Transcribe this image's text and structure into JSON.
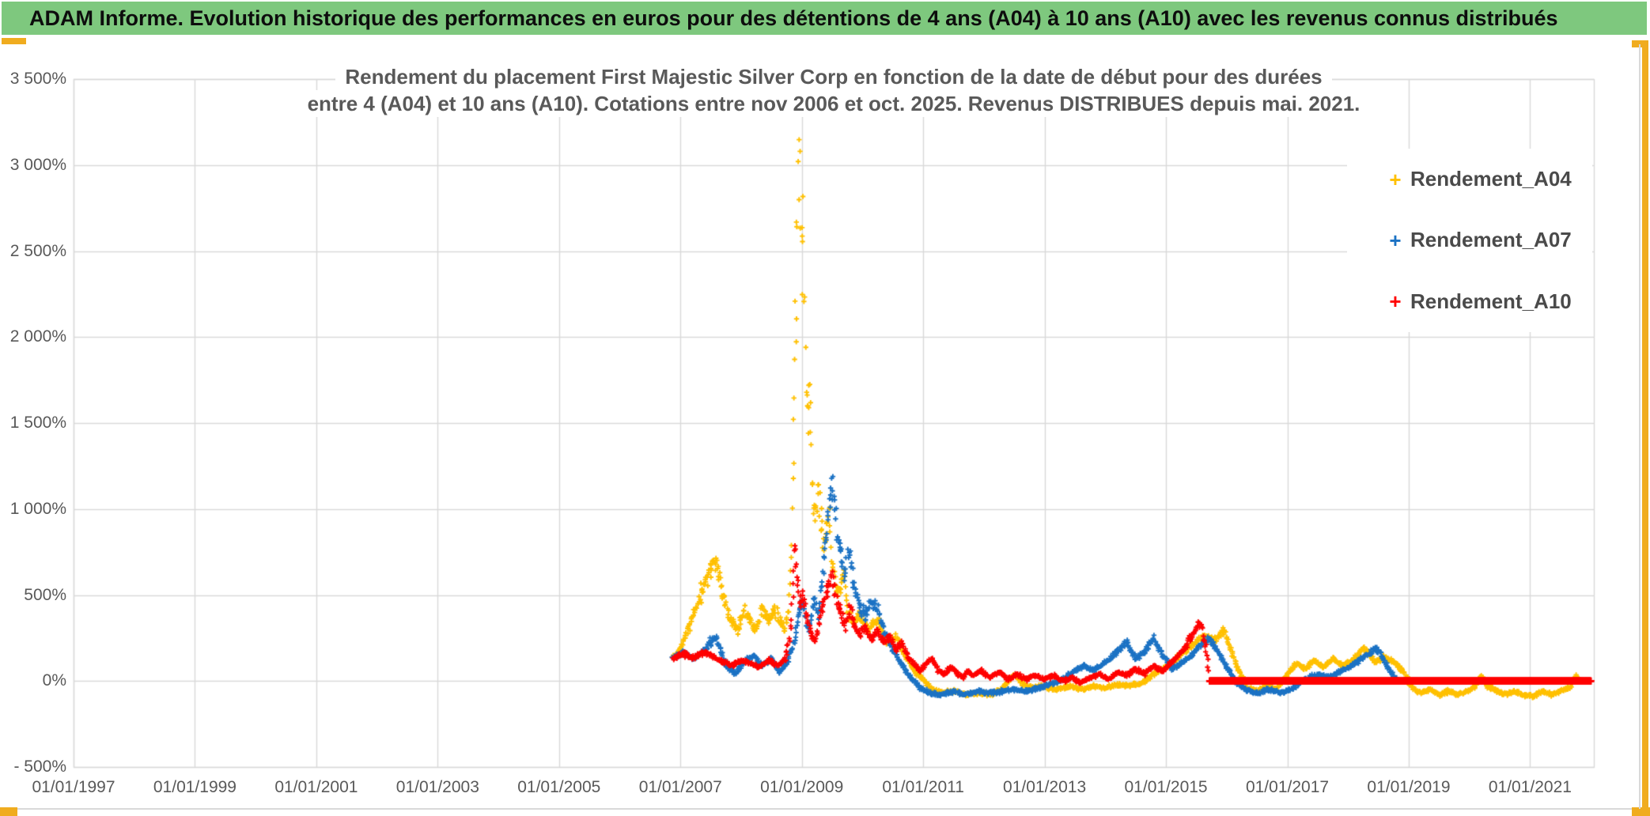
{
  "header": {
    "title": "ADAM Informe. Evolution historique des performances en euros pour des détentions de 4 ans (A04) à 10 ans (A10) avec les revenus connus distribués"
  },
  "colors": {
    "header_bg": "#7EC87E",
    "accent_gold": "#F0AC1F",
    "grid": "#D9D9D9",
    "axis_text": "#595959",
    "title_text": "#595959",
    "legend_text": "#4A4A4A"
  },
  "chart": {
    "title_line1": "Rendement du placement First Majestic Silver Corp en fonction de la date de début pour des durées",
    "title_line2": "entre 4 (A04) et 10 ans (A10). Cotations entre nov 2006 et oct. 2025. Revenus DISTRIBUES depuis mai. 2021."
  },
  "chart_data": {
    "type": "scatter",
    "title": "Rendement du placement First Majestic Silver Corp en fonction de la date de début pour des durées entre 4 (A04) et 10 ans (A10). Cotations entre nov 2006 et oct. 2025. Revenus DISTRIBUES depuis mai. 2021.",
    "legend_position": "right-top",
    "x_axis": {
      "tick_labels": [
        "01/01/1997",
        "01/01/1999",
        "01/01/2001",
        "01/01/2003",
        "01/01/2005",
        "01/01/2007",
        "01/01/2009",
        "01/01/2011",
        "01/01/2013",
        "01/01/2015",
        "01/01/2017",
        "01/01/2019",
        "01/01/2021"
      ],
      "tick_years": [
        1997,
        1999,
        2001,
        2003,
        2005,
        2007,
        2009,
        2011,
        2013,
        2015,
        2017,
        2019,
        2021
      ],
      "range": [
        1997,
        2022.05
      ],
      "gridlines": true
    },
    "y_axis": {
      "tick_labels": [
        "3 500%",
        "3 000%",
        "2 500%",
        "2 000%",
        "1 500%",
        "1 000%",
        "500%",
        "0%",
        "- 500%"
      ],
      "tick_values": [
        3500,
        3000,
        2500,
        2000,
        1500,
        1000,
        500,
        0,
        -500
      ],
      "range": [
        -500,
        3500
      ],
      "unit": "percent",
      "gridlines": true
    },
    "series": [
      {
        "name": "Rendement_A04",
        "color": "#FFC000",
        "marker": "+",
        "points_unit": [
          "decimal_year_start_date",
          "percent_return"
        ],
        "anchors": [
          [
            2006.87,
            140
          ],
          [
            2007.0,
            180
          ],
          [
            2007.15,
            320
          ],
          [
            2007.35,
            520
          ],
          [
            2007.5,
            650
          ],
          [
            2007.6,
            700
          ],
          [
            2007.7,
            500
          ],
          [
            2007.8,
            370
          ],
          [
            2007.95,
            300
          ],
          [
            2008.05,
            420
          ],
          [
            2008.15,
            350
          ],
          [
            2008.25,
            300
          ],
          [
            2008.35,
            430
          ],
          [
            2008.45,
            350
          ],
          [
            2008.55,
            420
          ],
          [
            2008.65,
            350
          ],
          [
            2008.72,
            300
          ],
          [
            2008.78,
            420
          ],
          [
            2008.82,
            700
          ],
          [
            2008.86,
            1300
          ],
          [
            2008.9,
            2100
          ],
          [
            2008.94,
            2900
          ],
          [
            2008.97,
            3050
          ],
          [
            2009.0,
            2300
          ],
          [
            2009.03,
            2650
          ],
          [
            2009.06,
            1900
          ],
          [
            2009.1,
            1400
          ],
          [
            2009.13,
            1700
          ],
          [
            2009.17,
            1150
          ],
          [
            2009.22,
            950
          ],
          [
            2009.28,
            1100
          ],
          [
            2009.35,
            800
          ],
          [
            2009.45,
            950
          ],
          [
            2009.5,
            700
          ],
          [
            2009.6,
            480
          ],
          [
            2009.68,
            620
          ],
          [
            2009.75,
            400
          ],
          [
            2009.85,
            330
          ],
          [
            2009.95,
            380
          ],
          [
            2010.1,
            300
          ],
          [
            2010.25,
            350
          ],
          [
            2010.4,
            230
          ],
          [
            2010.55,
            260
          ],
          [
            2010.7,
            150
          ],
          [
            2010.85,
            60
          ],
          [
            2011.0,
            10
          ],
          [
            2011.15,
            -50
          ],
          [
            2011.3,
            -70
          ],
          [
            2011.5,
            -60
          ],
          [
            2011.7,
            -80
          ],
          [
            2011.9,
            -70
          ],
          [
            2012.1,
            -80
          ],
          [
            2012.3,
            -50
          ],
          [
            2012.5,
            40
          ],
          [
            2012.65,
            -20
          ],
          [
            2012.8,
            -40
          ],
          [
            2013.0,
            -30
          ],
          [
            2013.2,
            -50
          ],
          [
            2013.4,
            -30
          ],
          [
            2013.6,
            -50
          ],
          [
            2013.8,
            -30
          ],
          [
            2014.0,
            -40
          ],
          [
            2014.2,
            -20
          ],
          [
            2014.4,
            -30
          ],
          [
            2014.6,
            -10
          ],
          [
            2014.8,
            40
          ],
          [
            2015.0,
            80
          ],
          [
            2015.2,
            140
          ],
          [
            2015.4,
            200
          ],
          [
            2015.6,
            260
          ],
          [
            2015.8,
            240
          ],
          [
            2015.95,
            300
          ],
          [
            2016.05,
            200
          ],
          [
            2016.2,
            60
          ],
          [
            2016.35,
            -40
          ],
          [
            2016.5,
            -60
          ],
          [
            2016.65,
            -30
          ],
          [
            2016.8,
            -50
          ],
          [
            2017.0,
            40
          ],
          [
            2017.15,
            100
          ],
          [
            2017.3,
            70
          ],
          [
            2017.45,
            120
          ],
          [
            2017.6,
            80
          ],
          [
            2017.75,
            130
          ],
          [
            2017.9,
            90
          ],
          [
            2018.05,
            110
          ],
          [
            2018.2,
            170
          ],
          [
            2018.3,
            190
          ],
          [
            2018.45,
            110
          ],
          [
            2018.6,
            140
          ],
          [
            2018.75,
            110
          ],
          [
            2018.9,
            60
          ],
          [
            2019.05,
            -40
          ],
          [
            2019.2,
            -70
          ],
          [
            2019.35,
            -50
          ],
          [
            2019.5,
            -80
          ],
          [
            2019.65,
            -60
          ],
          [
            2019.8,
            -80
          ],
          [
            2019.95,
            -60
          ],
          [
            2020.1,
            -30
          ],
          [
            2020.2,
            30
          ],
          [
            2020.3,
            -30
          ],
          [
            2020.45,
            -60
          ],
          [
            2020.6,
            -80
          ],
          [
            2020.75,
            -60
          ],
          [
            2020.9,
            -80
          ],
          [
            2021.05,
            -90
          ],
          [
            2021.2,
            -60
          ],
          [
            2021.35,
            -80
          ],
          [
            2021.5,
            -60
          ],
          [
            2021.65,
            -40
          ],
          [
            2021.75,
            30
          ],
          [
            2021.83,
            10
          ]
        ]
      },
      {
        "name": "Rendement_A07",
        "color": "#1B72C4",
        "marker": "+",
        "points_unit": [
          "decimal_year_start_date",
          "percent_return"
        ],
        "anchors": [
          [
            2006.87,
            140
          ],
          [
            2007.05,
            170
          ],
          [
            2007.2,
            130
          ],
          [
            2007.35,
            160
          ],
          [
            2007.5,
            230
          ],
          [
            2007.6,
            250
          ],
          [
            2007.75,
            90
          ],
          [
            2007.9,
            40
          ],
          [
            2008.05,
            110
          ],
          [
            2008.2,
            150
          ],
          [
            2008.35,
            90
          ],
          [
            2008.5,
            130
          ],
          [
            2008.62,
            50
          ],
          [
            2008.75,
            100
          ],
          [
            2008.87,
            220
          ],
          [
            2008.95,
            380
          ],
          [
            2009.0,
            480
          ],
          [
            2009.05,
            380
          ],
          [
            2009.12,
            300
          ],
          [
            2009.2,
            480
          ],
          [
            2009.27,
            380
          ],
          [
            2009.33,
            600
          ],
          [
            2009.4,
            800
          ],
          [
            2009.47,
            1080
          ],
          [
            2009.52,
            1100
          ],
          [
            2009.57,
            900
          ],
          [
            2009.63,
            780
          ],
          [
            2009.7,
            620
          ],
          [
            2009.77,
            760
          ],
          [
            2009.85,
            560
          ],
          [
            2009.95,
            430
          ],
          [
            2010.05,
            380
          ],
          [
            2010.15,
            480
          ],
          [
            2010.25,
            420
          ],
          [
            2010.35,
            300
          ],
          [
            2010.5,
            180
          ],
          [
            2010.65,
            90
          ],
          [
            2010.8,
            20
          ],
          [
            2010.95,
            -40
          ],
          [
            2011.1,
            -70
          ],
          [
            2011.3,
            -80
          ],
          [
            2011.5,
            -60
          ],
          [
            2011.7,
            -80
          ],
          [
            2011.9,
            -60
          ],
          [
            2012.1,
            -70
          ],
          [
            2012.3,
            -60
          ],
          [
            2012.5,
            -50
          ],
          [
            2012.7,
            -60
          ],
          [
            2012.9,
            -40
          ],
          [
            2013.1,
            -20
          ],
          [
            2013.3,
            10
          ],
          [
            2013.5,
            60
          ],
          [
            2013.65,
            90
          ],
          [
            2013.8,
            60
          ],
          [
            2014.0,
            110
          ],
          [
            2014.2,
            170
          ],
          [
            2014.35,
            220
          ],
          [
            2014.5,
            130
          ],
          [
            2014.65,
            170
          ],
          [
            2014.8,
            250
          ],
          [
            2014.95,
            150
          ],
          [
            2015.1,
            70
          ],
          [
            2015.25,
            100
          ],
          [
            2015.4,
            140
          ],
          [
            2015.55,
            200
          ],
          [
            2015.7,
            250
          ],
          [
            2015.85,
            180
          ],
          [
            2016.0,
            80
          ],
          [
            2016.15,
            0
          ],
          [
            2016.3,
            -50
          ],
          [
            2016.5,
            -70
          ],
          [
            2016.7,
            -50
          ],
          [
            2016.9,
            -70
          ],
          [
            2017.1,
            -40
          ],
          [
            2017.3,
            10
          ],
          [
            2017.5,
            40
          ],
          [
            2017.7,
            20
          ],
          [
            2017.85,
            50
          ],
          [
            2018.0,
            80
          ],
          [
            2018.15,
            110
          ],
          [
            2018.3,
            150
          ],
          [
            2018.45,
            190
          ],
          [
            2018.55,
            150
          ],
          [
            2018.65,
            80
          ],
          [
            2018.75,
            30
          ],
          [
            2018.8,
            20
          ]
        ]
      },
      {
        "name": "Rendement_A10",
        "color": "#FF0000",
        "marker": "+",
        "points_unit": [
          "decimal_year_start_date",
          "percent_return"
        ],
        "anchors": [
          [
            2006.87,
            130
          ],
          [
            2007.05,
            160
          ],
          [
            2007.2,
            130
          ],
          [
            2007.4,
            170
          ],
          [
            2007.55,
            140
          ],
          [
            2007.7,
            110
          ],
          [
            2007.85,
            90
          ],
          [
            2008.0,
            120
          ],
          [
            2008.15,
            100
          ],
          [
            2008.3,
            80
          ],
          [
            2008.45,
            120
          ],
          [
            2008.6,
            90
          ],
          [
            2008.72,
            120
          ],
          [
            2008.8,
            250
          ],
          [
            2008.85,
            480
          ],
          [
            2008.88,
            780
          ],
          [
            2008.92,
            600
          ],
          [
            2008.97,
            420
          ],
          [
            2009.02,
            520
          ],
          [
            2009.08,
            380
          ],
          [
            2009.15,
            280
          ],
          [
            2009.22,
            220
          ],
          [
            2009.3,
            380
          ],
          [
            2009.37,
            480
          ],
          [
            2009.45,
            560
          ],
          [
            2009.5,
            620
          ],
          [
            2009.57,
            480
          ],
          [
            2009.65,
            380
          ],
          [
            2009.72,
            320
          ],
          [
            2009.8,
            420
          ],
          [
            2009.88,
            320
          ],
          [
            2009.95,
            260
          ],
          [
            2010.05,
            310
          ],
          [
            2010.15,
            240
          ],
          [
            2010.25,
            290
          ],
          [
            2010.35,
            220
          ],
          [
            2010.45,
            260
          ],
          [
            2010.55,
            180
          ],
          [
            2010.65,
            220
          ],
          [
            2010.75,
            140
          ],
          [
            2010.85,
            100
          ],
          [
            2010.95,
            60
          ],
          [
            2011.05,
            100
          ],
          [
            2011.15,
            130
          ],
          [
            2011.25,
            60
          ],
          [
            2011.35,
            40
          ],
          [
            2011.45,
            80
          ],
          [
            2011.55,
            50
          ],
          [
            2011.65,
            20
          ],
          [
            2011.75,
            60
          ],
          [
            2011.85,
            30
          ],
          [
            2011.95,
            60
          ],
          [
            2012.1,
            20
          ],
          [
            2012.25,
            50
          ],
          [
            2012.4,
            10
          ],
          [
            2012.55,
            40
          ],
          [
            2012.7,
            10
          ],
          [
            2012.85,
            30
          ],
          [
            2013.0,
            10
          ],
          [
            2013.15,
            30
          ],
          [
            2013.3,
            0
          ],
          [
            2013.45,
            20
          ],
          [
            2013.6,
            -10
          ],
          [
            2013.75,
            20
          ],
          [
            2013.9,
            40
          ],
          [
            2014.05,
            10
          ],
          [
            2014.2,
            50
          ],
          [
            2014.35,
            30
          ],
          [
            2014.5,
            70
          ],
          [
            2014.65,
            40
          ],
          [
            2014.8,
            90
          ],
          [
            2014.95,
            60
          ],
          [
            2015.1,
            110
          ],
          [
            2015.25,
            170
          ],
          [
            2015.4,
            240
          ],
          [
            2015.5,
            310
          ],
          [
            2015.57,
            340
          ],
          [
            2015.65,
            200
          ],
          [
            2015.7,
            60
          ]
        ],
        "flat_zero_segment": {
          "from": 2015.72,
          "to": 2022.0,
          "value": 0
        }
      }
    ]
  }
}
